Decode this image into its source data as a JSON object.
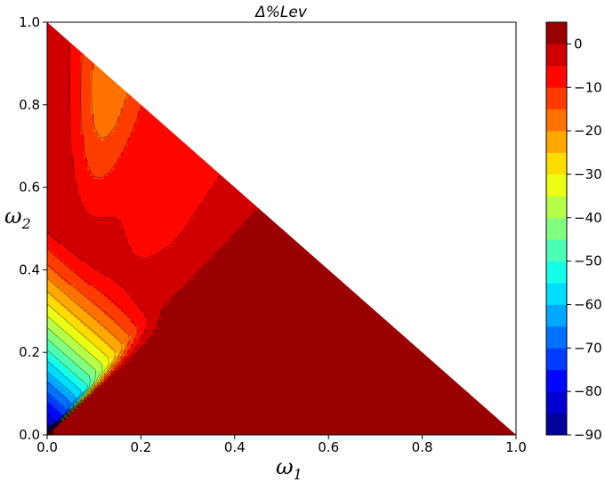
{
  "chart_data": {
    "type": "heatmap",
    "title": "Δ%Lev",
    "xlabel": "ω",
    "xlabel_sub": "1",
    "ylabel": "ω",
    "ylabel_sub": "2",
    "xlim": [
      0.0,
      1.0
    ],
    "ylim": [
      0.0,
      1.0
    ],
    "x_ticks": [
      "0.0",
      "0.2",
      "0.4",
      "0.6",
      "0.8",
      "1.0"
    ],
    "y_ticks": [
      "0.0",
      "0.2",
      "0.4",
      "0.6",
      "0.8",
      "1.0"
    ],
    "colorbar": {
      "range": [
        -90,
        5
      ],
      "ticks": [
        "0",
        "−10",
        "−20",
        "−30",
        "−40",
        "−50",
        "−60",
        "−70",
        "−80",
        "−90"
      ],
      "tick_values": [
        0,
        -10,
        -20,
        -30,
        -40,
        -50,
        -60,
        -70,
        -80,
        -90
      ],
      "levels": [
        -90,
        -85,
        -80,
        -75,
        -70,
        -65,
        -60,
        -55,
        -50,
        -45,
        -40,
        -35,
        -30,
        -25,
        -20,
        -15,
        -10,
        -5,
        0,
        5
      ],
      "colormap": "jet"
    },
    "domain": "triangle: ω1 + ω2 ≤ 1",
    "grid": false
  }
}
